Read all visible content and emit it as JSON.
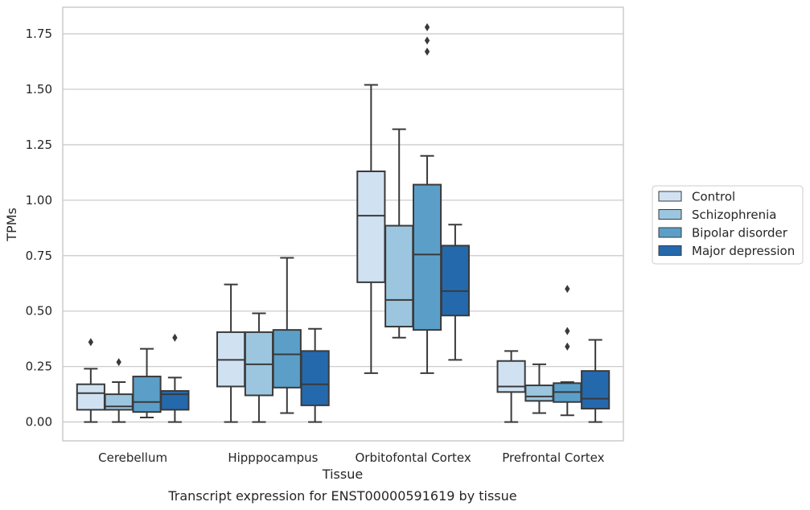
{
  "chart_data": {
    "type": "boxplot",
    "xlabel": "Tissue",
    "ylabel": "TPMs",
    "caption": "Transcript expression for ENST00000591619 by tissue",
    "ylim": [
      -0.085,
      1.87
    ],
    "yticks": [
      0.0,
      0.25,
      0.5,
      0.75,
      1.0,
      1.25,
      1.5,
      1.75
    ],
    "ytick_labels": [
      "0.00",
      "0.25",
      "0.50",
      "0.75",
      "1.00",
      "1.25",
      "1.50",
      "1.75"
    ],
    "grid": "horizontal",
    "legend_position": "right",
    "categories": [
      "Cerebellum",
      "Hipppocampus",
      "Orbitofontal Cortex",
      "Prefrontal Cortex"
    ],
    "series": [
      {
        "name": "Control",
        "color": "#d0e2f2",
        "boxes": [
          {
            "whislo": 0.0,
            "q1": 0.055,
            "med": 0.13,
            "q3": 0.17,
            "whishi": 0.24,
            "fliers": [
              0.36
            ]
          },
          {
            "whislo": 0.0,
            "q1": 0.16,
            "med": 0.28,
            "q3": 0.405,
            "whishi": 0.62,
            "fliers": []
          },
          {
            "whislo": 0.22,
            "q1": 0.63,
            "med": 0.93,
            "q3": 1.13,
            "whishi": 1.52,
            "fliers": []
          },
          {
            "whislo": 0.0,
            "q1": 0.135,
            "med": 0.16,
            "q3": 0.275,
            "whishi": 0.32,
            "fliers": []
          }
        ]
      },
      {
        "name": "Schizophrenia",
        "color": "#9cc6e0",
        "boxes": [
          {
            "whislo": 0.0,
            "q1": 0.055,
            "med": 0.07,
            "q3": 0.125,
            "whishi": 0.18,
            "fliers": [
              0.27
            ]
          },
          {
            "whislo": 0.0,
            "q1": 0.12,
            "med": 0.26,
            "q3": 0.405,
            "whishi": 0.49,
            "fliers": []
          },
          {
            "whislo": 0.38,
            "q1": 0.43,
            "med": 0.55,
            "q3": 0.885,
            "whishi": 1.32,
            "fliers": []
          },
          {
            "whislo": 0.04,
            "q1": 0.095,
            "med": 0.115,
            "q3": 0.165,
            "whishi": 0.26,
            "fliers": []
          }
        ]
      },
      {
        "name": "Bipolar disorder",
        "color": "#5b9fc9",
        "boxes": [
          {
            "whislo": 0.02,
            "q1": 0.045,
            "med": 0.09,
            "q3": 0.205,
            "whishi": 0.33,
            "fliers": []
          },
          {
            "whislo": 0.04,
            "q1": 0.155,
            "med": 0.305,
            "q3": 0.415,
            "whishi": 0.74,
            "fliers": []
          },
          {
            "whislo": 0.22,
            "q1": 0.415,
            "med": 0.755,
            "q3": 1.07,
            "whishi": 1.2,
            "fliers": [
              1.67,
              1.72,
              1.78
            ]
          },
          {
            "whislo": 0.03,
            "q1": 0.09,
            "med": 0.135,
            "q3": 0.175,
            "whishi": 0.18,
            "fliers": [
              0.34,
              0.41,
              0.6
            ]
          }
        ]
      },
      {
        "name": "Major depression",
        "color": "#2569ad",
        "boxes": [
          {
            "whislo": 0.0,
            "q1": 0.055,
            "med": 0.125,
            "q3": 0.14,
            "whishi": 0.2,
            "fliers": [
              0.38
            ]
          },
          {
            "whislo": 0.0,
            "q1": 0.075,
            "med": 0.17,
            "q3": 0.32,
            "whishi": 0.42,
            "fliers": []
          },
          {
            "whislo": 0.28,
            "q1": 0.48,
            "med": 0.59,
            "q3": 0.795,
            "whishi": 0.89,
            "fliers": []
          },
          {
            "whislo": 0.0,
            "q1": 0.06,
            "med": 0.105,
            "q3": 0.23,
            "whishi": 0.37,
            "fliers": []
          }
        ]
      }
    ]
  }
}
